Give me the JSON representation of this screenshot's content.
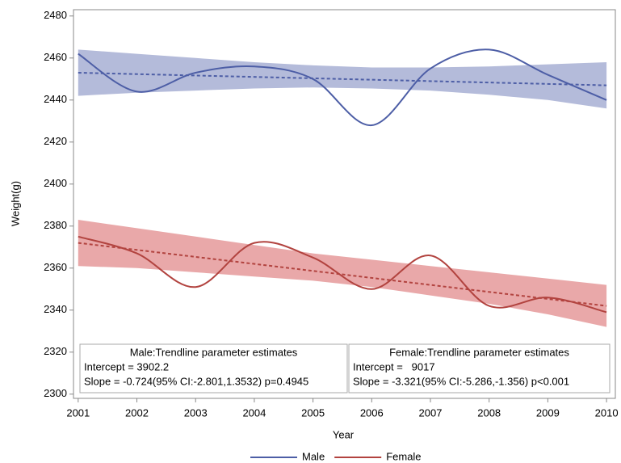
{
  "chart_data": {
    "type": "line",
    "x_label": "Year",
    "y_label": "Weight(g)",
    "x": [
      2001,
      2002,
      2003,
      2004,
      2005,
      2006,
      2007,
      2008,
      2009,
      2010
    ],
    "xlim": [
      2000.92,
      2010.15
    ],
    "ylim": [
      2298,
      2483
    ],
    "xticks": [
      2001,
      2002,
      2003,
      2004,
      2005,
      2006,
      2007,
      2008,
      2009,
      2010
    ],
    "yticks": [
      2300,
      2320,
      2340,
      2360,
      2380,
      2400,
      2420,
      2440,
      2460,
      2480
    ],
    "trend_x": [
      2001,
      2010
    ],
    "series": [
      {
        "name": "Male",
        "color": "#4d5ea6",
        "band_color": "#b4bbda",
        "values": [
          2462,
          2444,
          2453,
          2456,
          2450,
          2428,
          2455,
          2464,
          2452,
          2440
        ],
        "band_upper": [
          2464,
          2462,
          2460,
          2458,
          2456.5,
          2455.5,
          2455.5,
          2456,
          2457,
          2458
        ],
        "band_lower": [
          2442,
          2443.5,
          2444.5,
          2445.5,
          2446,
          2445.5,
          2444.5,
          2442.5,
          2440,
          2436
        ],
        "trend": [
          2453,
          2447
        ]
      },
      {
        "name": "Female",
        "color": "#b2433f",
        "band_color": "#e9a8a9",
        "values": [
          2375,
          2367,
          2351,
          2372,
          2365,
          2350,
          2366,
          2342,
          2346,
          2339
        ],
        "band_upper": [
          2383,
          2379,
          2375,
          2371,
          2367,
          2364,
          2361,
          2358,
          2355,
          2352
        ],
        "band_lower": [
          2361,
          2360,
          2358,
          2356,
          2354,
          2351,
          2347,
          2343,
          2338,
          2332
        ],
        "trend": [
          2372,
          2342
        ]
      }
    ],
    "annotations": [
      {
        "title": "Male:Trendline parameter estimates",
        "lines": [
          "Intercept = 3902.2",
          "Slope = -0.724(95% CI:-2.801,1.3532) p=0.4945"
        ]
      },
      {
        "title": "Female:Trendline parameter estimates",
        "lines": [
          "Intercept =   9017",
          "Slope = -3.321(95% CI:-5.286,-1.356) p<0.001"
        ]
      }
    ]
  }
}
